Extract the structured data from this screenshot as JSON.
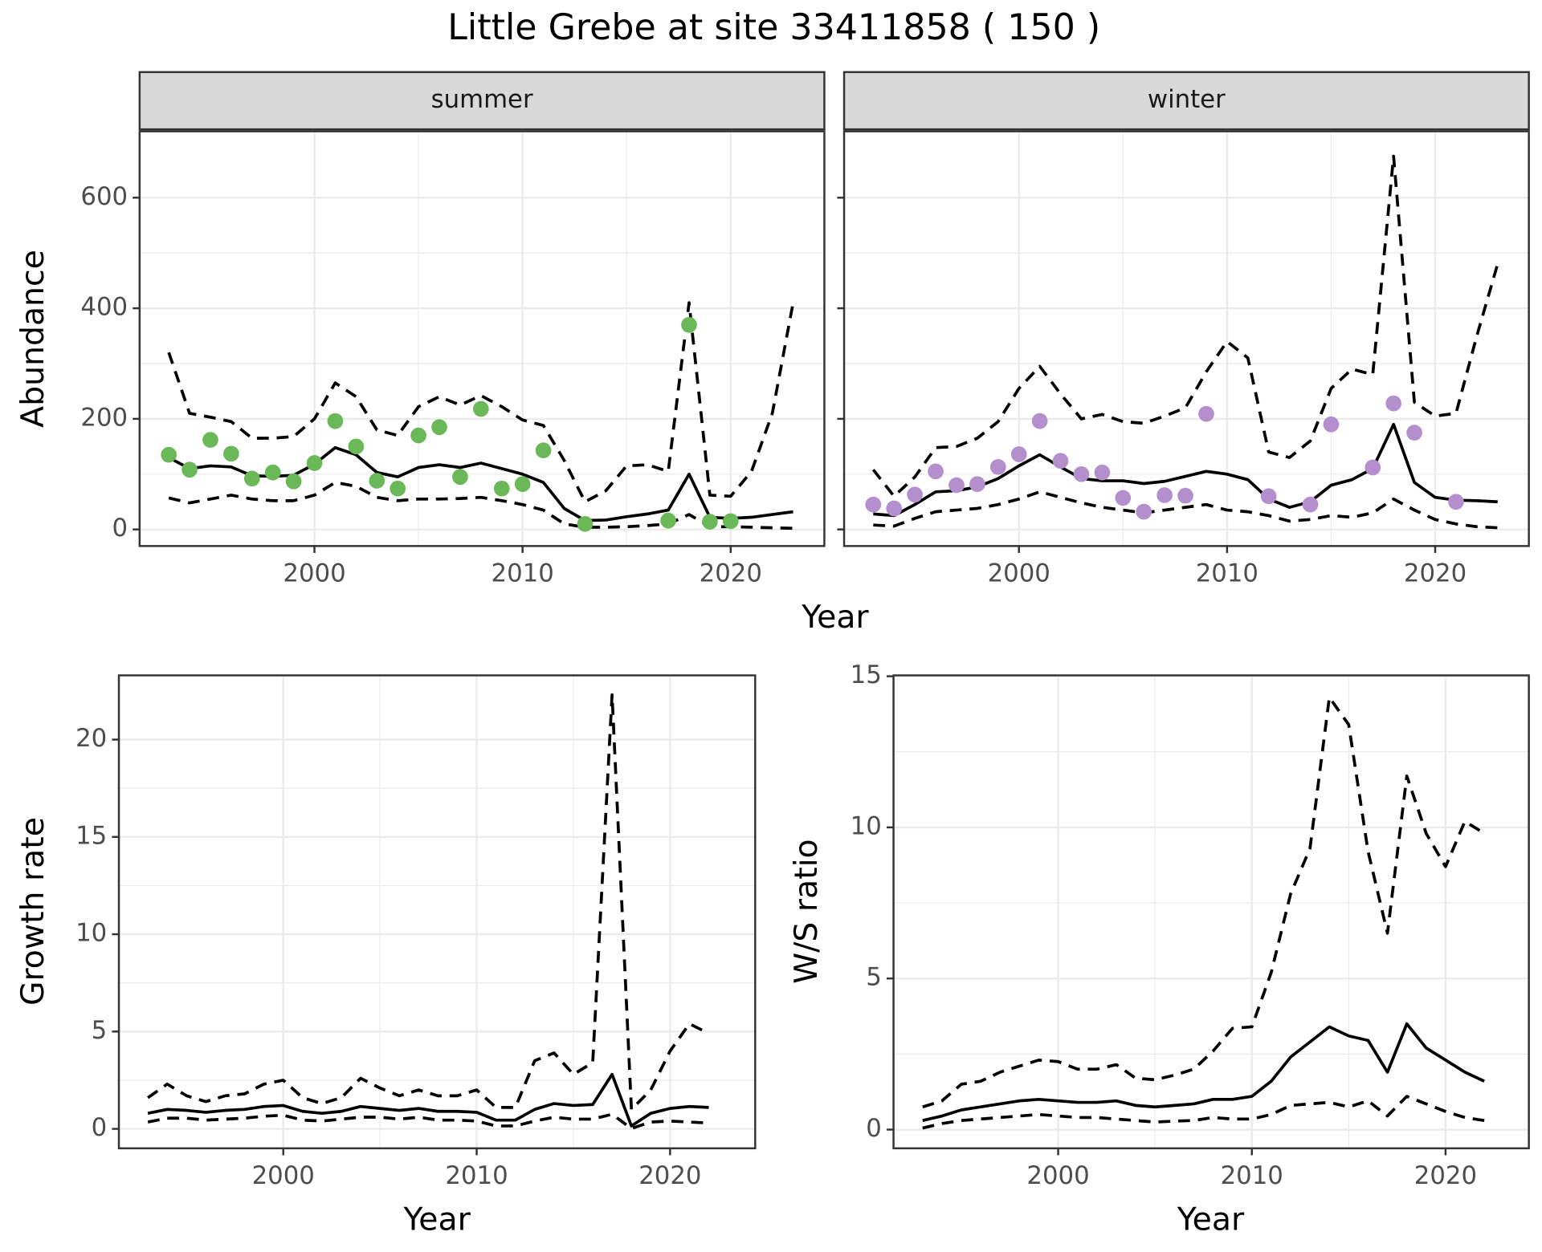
{
  "title": "Little Grebe at site 33411858 ( 150 )",
  "chart_data": [
    {
      "type": "line",
      "strip": "summer",
      "ylabel": "Abundance",
      "xlabel": "Year",
      "x": [
        1993,
        1994,
        1995,
        1996,
        1997,
        1998,
        1999,
        2000,
        2001,
        2002,
        2003,
        2004,
        2005,
        2006,
        2007,
        2008,
        2009,
        2010,
        2011,
        2012,
        2013,
        2014,
        2015,
        2016,
        2017,
        2018,
        2019,
        2020,
        2021,
        2022,
        2023
      ],
      "series": [
        {
          "style": "solid",
          "color": "#000000",
          "values": [
            130,
            110,
            115,
            113,
            97,
            96,
            98,
            118,
            148,
            135,
            103,
            95,
            112,
            117,
            112,
            120,
            110,
            100,
            85,
            38,
            16,
            17,
            23,
            28,
            35,
            100,
            22,
            20,
            22,
            27,
            32
          ]
        },
        {
          "style": "dashed",
          "color": "#000000",
          "values": [
            320,
            210,
            203,
            195,
            165,
            165,
            168,
            200,
            265,
            240,
            180,
            170,
            222,
            240,
            225,
            242,
            222,
            198,
            188,
            125,
            50,
            70,
            115,
            117,
            105,
            410,
            62,
            60,
            105,
            210,
            410
          ]
        },
        {
          "style": "dashed",
          "color": "#000000",
          "values": [
            57,
            48,
            55,
            62,
            55,
            52,
            52,
            62,
            85,
            78,
            58,
            52,
            55,
            55,
            56,
            58,
            52,
            45,
            35,
            10,
            4,
            4,
            5,
            7,
            10,
            27,
            5,
            5,
            4,
            3,
            2
          ]
        },
        {
          "style": "points",
          "color": "#6ab857",
          "values": [
            135,
            108,
            162,
            137,
            92,
            103,
            87,
            120,
            196,
            150,
            88,
            74,
            170,
            185,
            95,
            218,
            74,
            82,
            143,
            null,
            10,
            null,
            null,
            null,
            16,
            370,
            14,
            15,
            null,
            null,
            null
          ]
        }
      ],
      "xlim": [
        1991.6,
        2024.5
      ],
      "xticks": [
        2000,
        2010,
        2020
      ],
      "ylim": [
        -30,
        720
      ],
      "yticks": [
        0,
        200,
        400,
        600
      ],
      "ytick_labels": true,
      "grid": true
    },
    {
      "type": "line",
      "strip": "winter",
      "x": [
        1993,
        1994,
        1995,
        1996,
        1997,
        1998,
        1999,
        2000,
        2001,
        2002,
        2003,
        2004,
        2005,
        2006,
        2007,
        2008,
        2009,
        2010,
        2011,
        2012,
        2013,
        2014,
        2015,
        2016,
        2017,
        2018,
        2019,
        2020,
        2021,
        2022,
        2023
      ],
      "series": [
        {
          "style": "solid",
          "color": "#000000",
          "values": [
            28,
            25,
            45,
            68,
            70,
            77,
            92,
            115,
            135,
            113,
            92,
            88,
            88,
            83,
            87,
            96,
            105,
            100,
            90,
            55,
            40,
            50,
            80,
            90,
            110,
            190,
            85,
            58,
            53,
            52,
            50
          ]
        },
        {
          "style": "dashed",
          "color": "#000000",
          "values": [
            108,
            60,
            95,
            148,
            150,
            165,
            195,
            255,
            295,
            245,
            200,
            208,
            195,
            192,
            205,
            220,
            285,
            340,
            310,
            140,
            130,
            160,
            255,
            290,
            280,
            675,
            230,
            205,
            210,
            350,
            480
          ]
        },
        {
          "style": "dashed",
          "color": "#000000",
          "values": [
            8,
            6,
            20,
            32,
            35,
            38,
            45,
            55,
            68,
            58,
            48,
            40,
            35,
            30,
            35,
            40,
            45,
            35,
            32,
            25,
            15,
            18,
            25,
            22,
            30,
            55,
            35,
            18,
            10,
            5,
            3
          ]
        },
        {
          "style": "points",
          "color": "#b48fcd",
          "values": [
            45,
            38,
            63,
            105,
            80,
            82,
            113,
            136,
            196,
            124,
            100,
            103,
            57,
            32,
            62,
            61,
            209,
            null,
            null,
            60,
            null,
            45,
            190,
            null,
            112,
            228,
            175,
            null,
            50,
            null,
            null
          ]
        }
      ],
      "xlim": [
        1991.6,
        2024.5
      ],
      "xticks": [
        2000,
        2010,
        2020
      ],
      "ylim": [
        -30,
        720
      ],
      "yticks": [
        0,
        200,
        400,
        600
      ],
      "ytick_labels": false,
      "grid": true
    },
    {
      "type": "line",
      "ylabel": "Growth rate",
      "xlabel": "Year",
      "x": [
        1993,
        1994,
        1995,
        1996,
        1997,
        1998,
        1999,
        2000,
        2001,
        2002,
        2003,
        2004,
        2005,
        2006,
        2007,
        2008,
        2009,
        2010,
        2011,
        2012,
        2013,
        2014,
        2015,
        2016,
        2017,
        2018,
        2019,
        2020,
        2021,
        2022
      ],
      "series": [
        {
          "style": "solid",
          "color": "#000000",
          "values": [
            0.8,
            1.0,
            0.95,
            0.85,
            0.95,
            1.0,
            1.15,
            1.2,
            0.9,
            0.8,
            0.9,
            1.15,
            1.05,
            0.95,
            1.05,
            0.9,
            0.9,
            0.85,
            0.45,
            0.45,
            1.0,
            1.3,
            1.2,
            1.25,
            2.8,
            0.15,
            0.8,
            1.05,
            1.15,
            1.1
          ]
        },
        {
          "style": "dashed",
          "color": "#000000",
          "values": [
            1.6,
            2.3,
            1.7,
            1.4,
            1.7,
            1.8,
            2.3,
            2.5,
            1.6,
            1.3,
            1.6,
            2.6,
            2.1,
            1.7,
            2.0,
            1.7,
            1.7,
            2.0,
            1.1,
            1.1,
            3.5,
            3.9,
            2.8,
            3.4,
            22.3,
            1.0,
            2.0,
            4.0,
            5.4,
            4.9
          ]
        },
        {
          "style": "dashed",
          "color": "#000000",
          "values": [
            0.35,
            0.55,
            0.55,
            0.45,
            0.5,
            0.55,
            0.65,
            0.7,
            0.45,
            0.4,
            0.5,
            0.6,
            0.6,
            0.5,
            0.6,
            0.45,
            0.45,
            0.4,
            0.15,
            0.15,
            0.4,
            0.6,
            0.5,
            0.5,
            0.75,
            0.02,
            0.35,
            0.4,
            0.35,
            0.3
          ]
        }
      ],
      "xlim": [
        1991.5,
        2024.4
      ],
      "xticks": [
        2000,
        2010,
        2020
      ],
      "ylim": [
        -1.0,
        23.3
      ],
      "yticks": [
        0,
        5,
        10,
        15,
        20
      ],
      "ytick_labels": true,
      "grid": true
    },
    {
      "type": "line",
      "ylabel": "W/S ratio",
      "xlabel": "Year",
      "x": [
        1993,
        1994,
        1995,
        1996,
        1997,
        1998,
        1999,
        2000,
        2001,
        2002,
        2003,
        2004,
        2005,
        2006,
        2007,
        2008,
        2009,
        2010,
        2011,
        2012,
        2013,
        2014,
        2015,
        2016,
        2017,
        2018,
        2019,
        2020,
        2021,
        2022
      ],
      "series": [
        {
          "style": "solid",
          "color": "#000000",
          "values": [
            0.3,
            0.45,
            0.65,
            0.75,
            0.85,
            0.95,
            1.0,
            0.95,
            0.9,
            0.9,
            0.95,
            0.8,
            0.75,
            0.8,
            0.85,
            1.0,
            1.0,
            1.1,
            1.6,
            2.4,
            2.9,
            3.4,
            3.1,
            2.95,
            1.9,
            3.5,
            2.7,
            2.3,
            1.9,
            1.6
          ]
        },
        {
          "style": "dashed",
          "color": "#000000",
          "values": [
            0.75,
            0.95,
            1.5,
            1.6,
            1.9,
            2.1,
            2.3,
            2.25,
            2.0,
            2.0,
            2.15,
            1.7,
            1.65,
            1.8,
            2.0,
            2.6,
            3.35,
            3.4,
            5.2,
            7.8,
            9.3,
            14.3,
            13.4,
            9.2,
            6.5,
            11.7,
            9.8,
            8.7,
            10.2,
            9.8
          ]
        },
        {
          "style": "dashed",
          "color": "#000000",
          "values": [
            0.05,
            0.2,
            0.3,
            0.35,
            0.4,
            0.45,
            0.5,
            0.45,
            0.4,
            0.4,
            0.35,
            0.3,
            0.25,
            0.28,
            0.3,
            0.4,
            0.35,
            0.35,
            0.5,
            0.8,
            0.85,
            0.9,
            0.75,
            0.95,
            0.45,
            1.1,
            0.85,
            0.6,
            0.4,
            0.3
          ]
        }
      ],
      "xlim": [
        1991.5,
        2024.3
      ],
      "xticks": [
        2000,
        2010,
        2020
      ],
      "ylim": [
        -0.62,
        15.03
      ],
      "yticks": [
        0,
        5,
        10,
        15
      ],
      "ytick_labels": true,
      "grid": true
    }
  ]
}
